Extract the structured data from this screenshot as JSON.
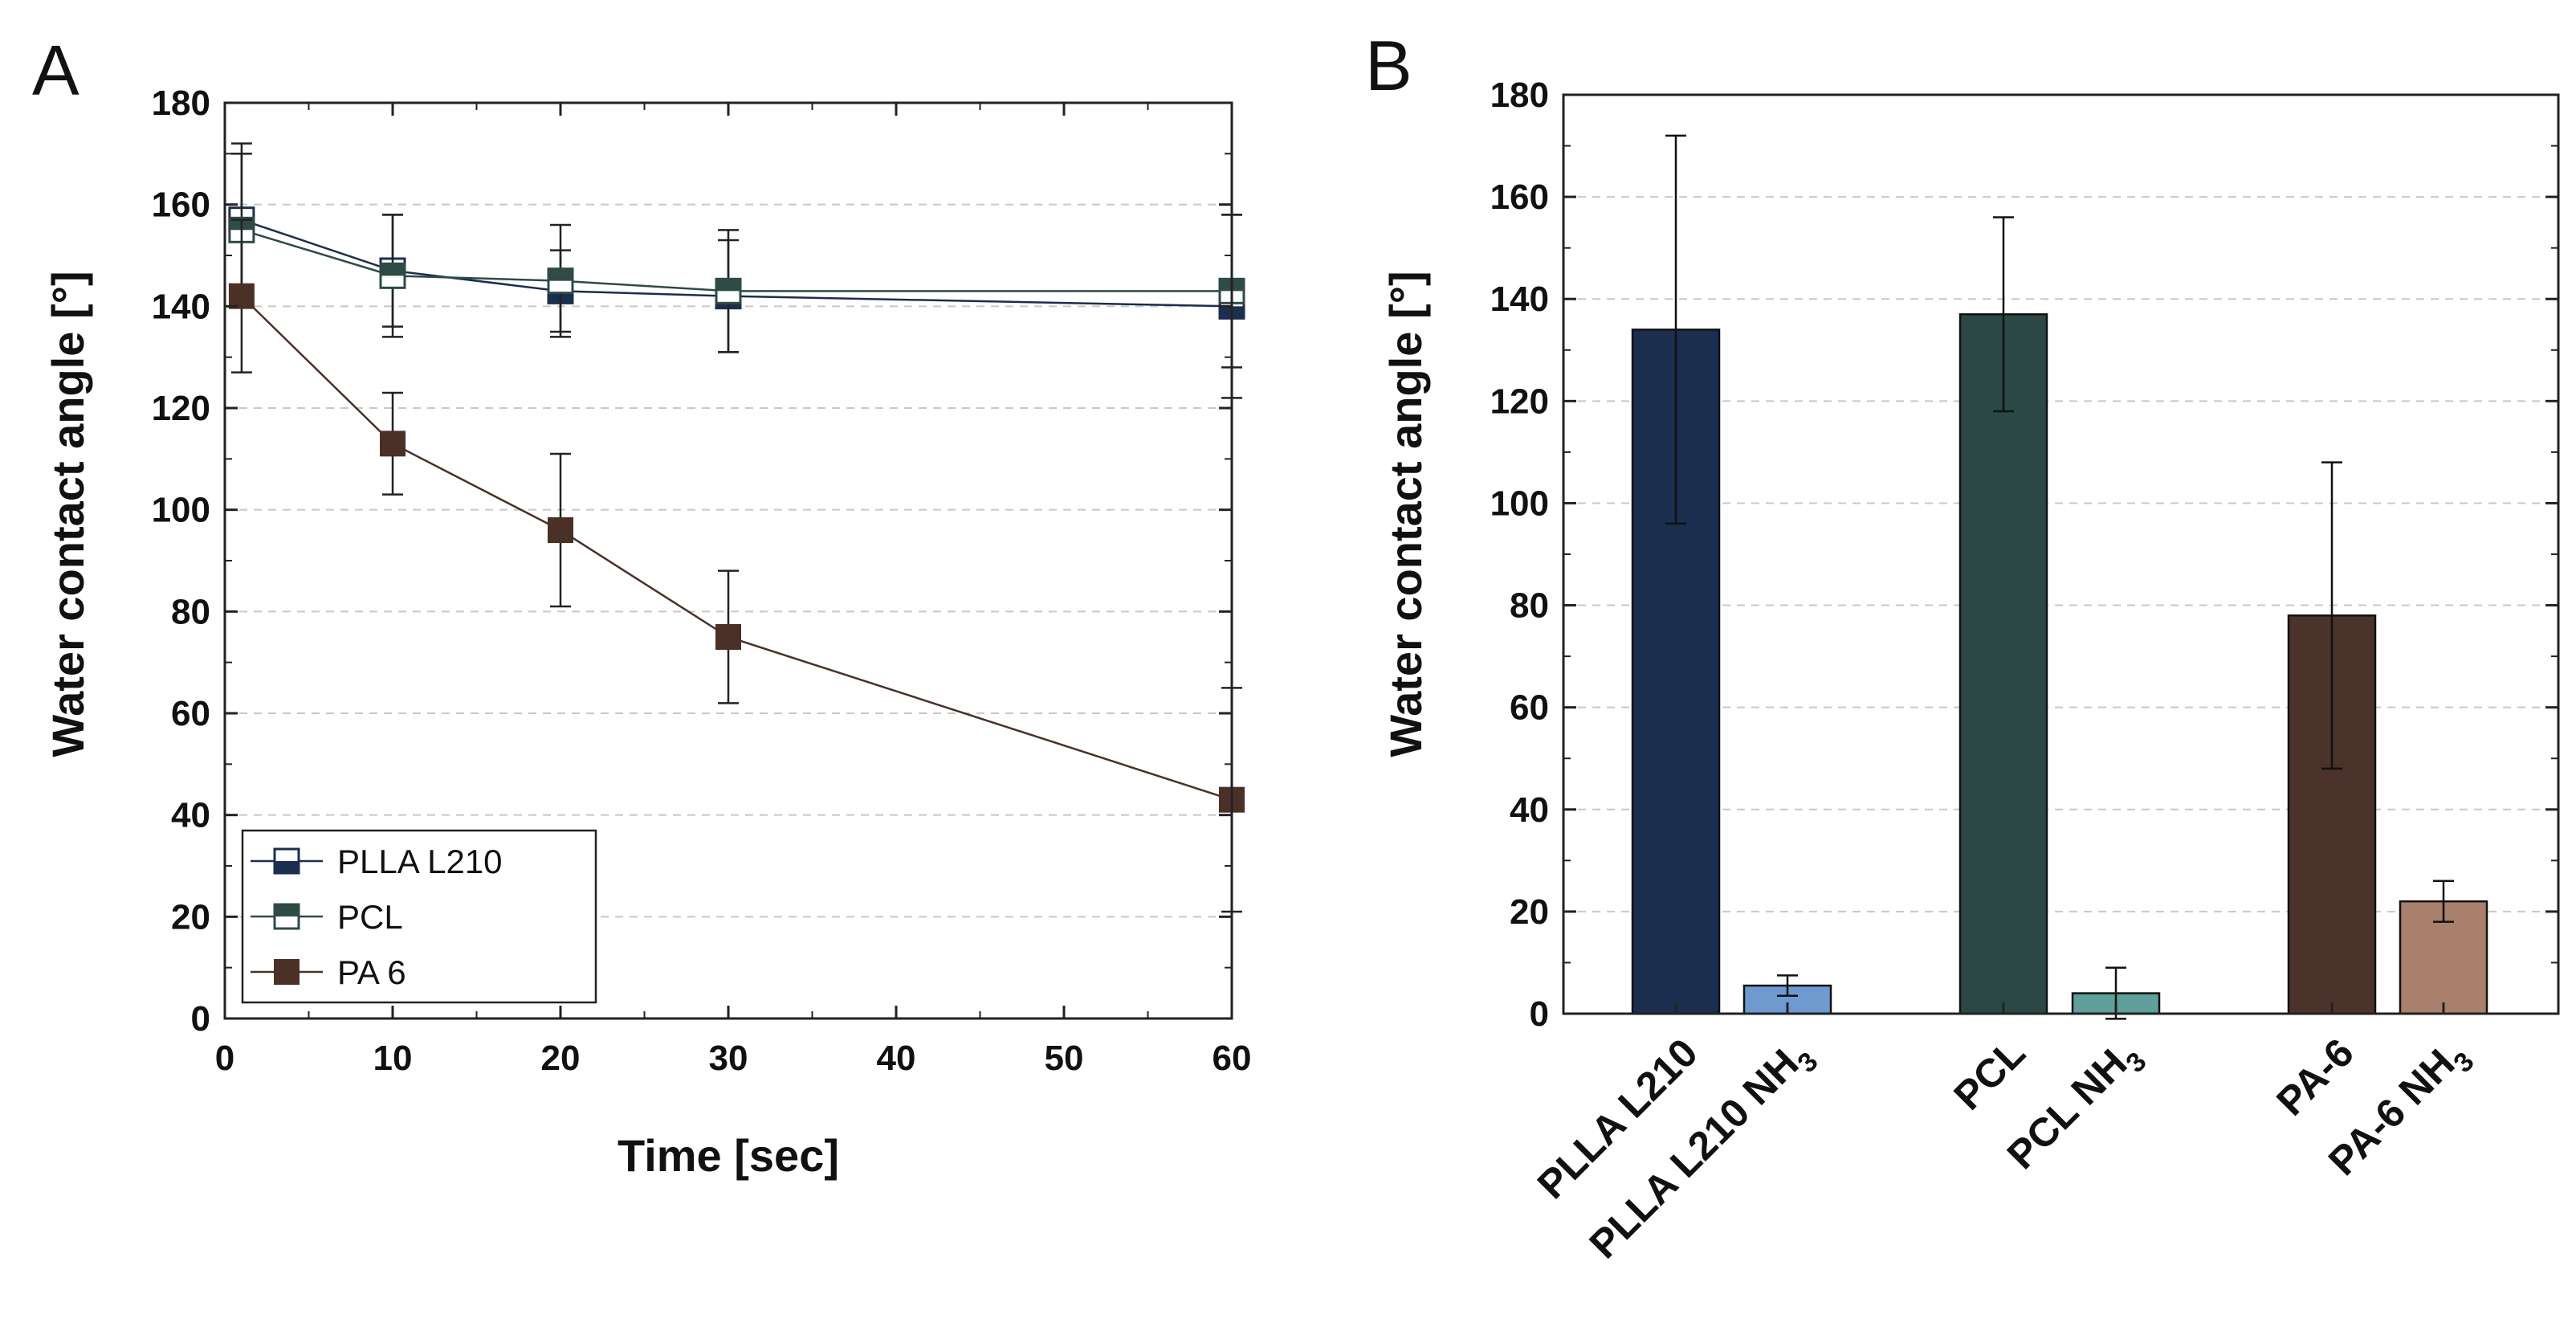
{
  "chart_data": [
    {
      "panel": "A",
      "type": "line",
      "xlabel": "Time [sec]",
      "ylabel": "Water contact angle [°]",
      "xlim": [
        0,
        60
      ],
      "ylim": [
        0,
        180
      ],
      "xticks": [
        "0",
        "10",
        "20",
        "30",
        "40",
        "50",
        "60"
      ],
      "yticks": [
        "0",
        "20",
        "40",
        "60",
        "80",
        "100",
        "120",
        "140",
        "160",
        "180"
      ],
      "grid": "horizontal dashed",
      "legend_position": "bottom-left",
      "series": [
        {
          "name": "PLLA L210",
          "color": "#1b2e4f",
          "marker": "half-filled square (bottom filled)",
          "x": [
            1,
            10,
            20,
            30,
            60
          ],
          "y": [
            157,
            147,
            143,
            142,
            140
          ],
          "err": [
            15,
            11,
            8,
            11,
            18
          ]
        },
        {
          "name": "PCL",
          "color": "#2e4b46",
          "marker": "half-filled square (top filled)",
          "x": [
            1,
            10,
            20,
            30,
            60
          ],
          "y": [
            155,
            146,
            145,
            143,
            143
          ],
          "err": [
            15,
            12,
            11,
            12,
            15
          ]
        },
        {
          "name": "PA 6",
          "color": "#4b3028",
          "marker": "filled square",
          "x": [
            1,
            10,
            20,
            30,
            60
          ],
          "y": [
            142,
            113,
            96,
            75,
            43
          ],
          "err": [
            15,
            10,
            15,
            13,
            22
          ]
        }
      ]
    },
    {
      "panel": "B",
      "type": "bar",
      "ylabel": "Water contact angle [°]",
      "ylim": [
        0,
        180
      ],
      "yticks": [
        "0",
        "20",
        "40",
        "60",
        "80",
        "100",
        "120",
        "140",
        "160",
        "180"
      ],
      "grid": "horizontal dashed",
      "bars": [
        {
          "label": "PLLA L210",
          "value": 134,
          "err": 38,
          "color": "#1b2e50"
        },
        {
          "label": "PLLA L210 NH",
          "sub": "3",
          "value": 5.5,
          "err": 2,
          "color": "#6e9ad0"
        },
        {
          "label": "PCL",
          "value": 137,
          "err": 19,
          "color": "#2b4845"
        },
        {
          "label": "PCL NH",
          "sub": "3",
          "value": 4,
          "err": 5,
          "color": "#5fa09b"
        },
        {
          "label": "PA-6",
          "value": 78,
          "err": 30,
          "color": "#4b332c"
        },
        {
          "label": "PA-6  NH",
          "sub": "3",
          "value": 22,
          "err": 4,
          "color": "#a9806b"
        }
      ]
    }
  ]
}
